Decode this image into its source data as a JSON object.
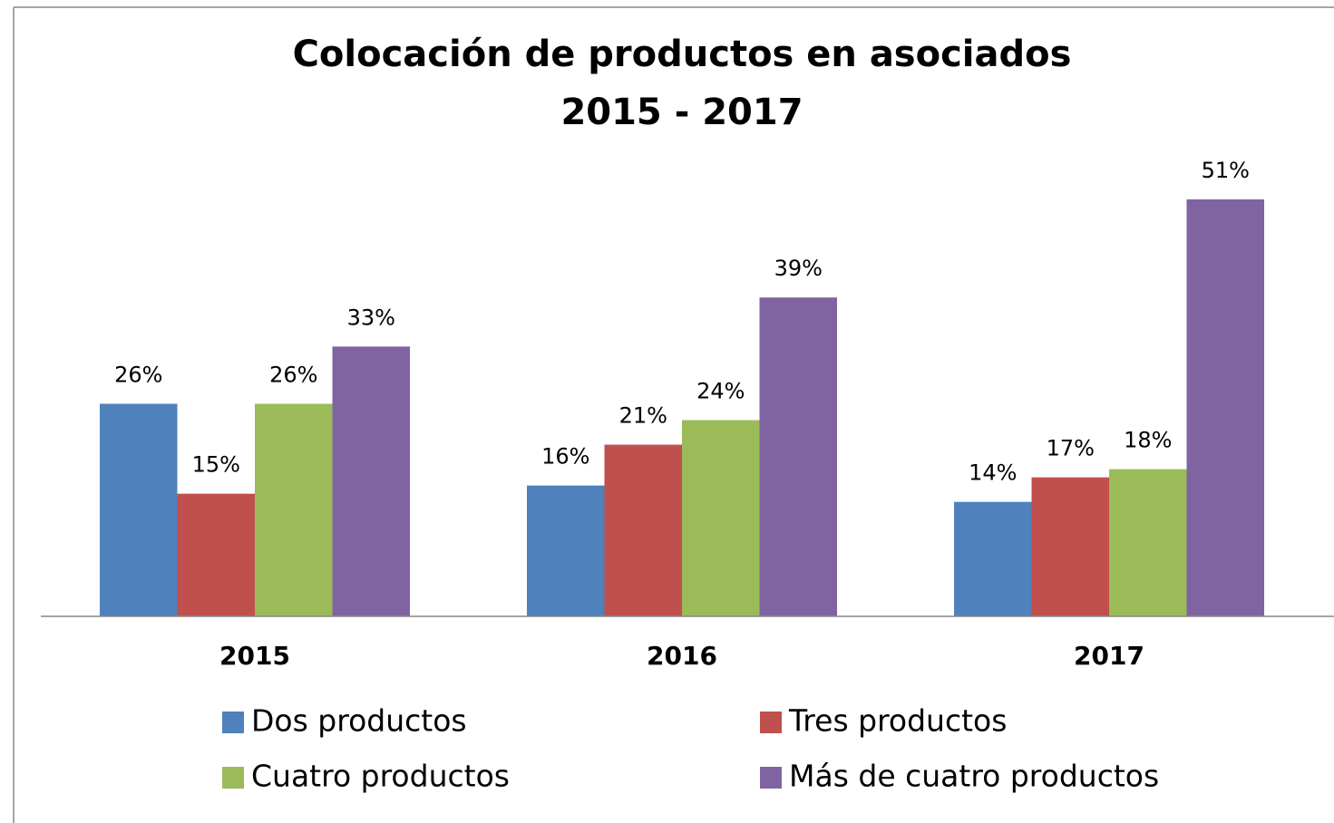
{
  "chart_data": {
    "type": "bar",
    "title": "Colocación de productos en asociados",
    "subtitle": "2015 - 2017",
    "categories": [
      "2015",
      "2016",
      "2017"
    ],
    "series": [
      {
        "name": "Dos productos",
        "color": "#4f81bd",
        "values": [
          26,
          16,
          14
        ],
        "value_labels": [
          "26%",
          "16%",
          "14%"
        ]
      },
      {
        "name": "Tres productos",
        "color": "#c0504d",
        "values": [
          15,
          21,
          17
        ],
        "value_labels": [
          "15%",
          "21%",
          "17%"
        ]
      },
      {
        "name": "Cuatro productos",
        "color": "#9bbb59",
        "values": [
          26,
          24,
          18
        ],
        "value_labels": [
          "26%",
          "24%",
          "18%"
        ]
      },
      {
        "name": "Más de cuatro productos",
        "color": "#8064a2",
        "values": [
          33,
          39,
          51
        ],
        "value_labels": [
          "33%",
          "39%",
          "51%"
        ]
      }
    ],
    "legend": "bottom"
  }
}
